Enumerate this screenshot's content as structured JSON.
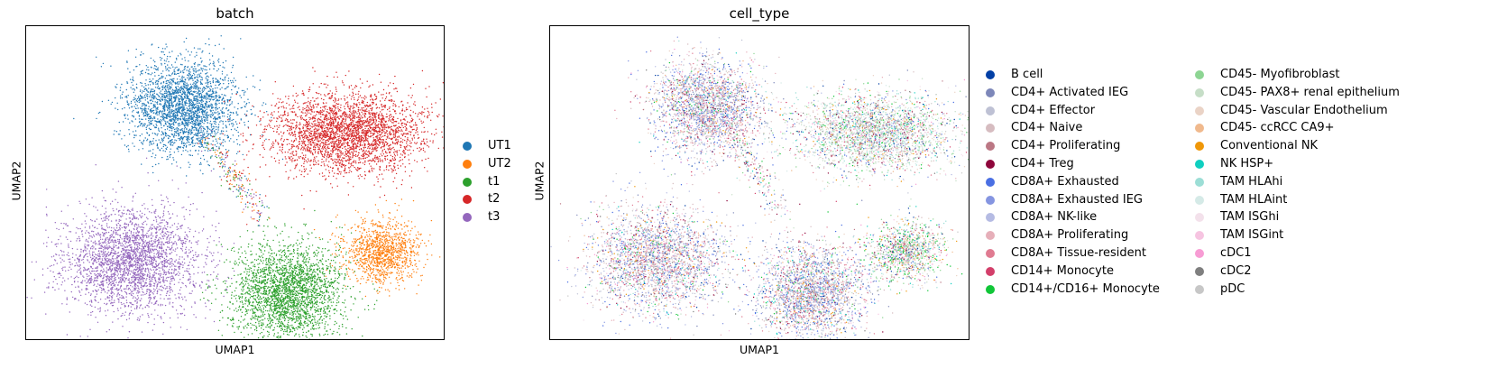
{
  "chart_data": [
    {
      "type": "scatter",
      "title": "batch",
      "xlabel": "UMAP1",
      "ylabel": "UMAP2",
      "grid": false,
      "ticks": "none",
      "legend": "right",
      "series": [
        {
          "name": "UT1",
          "color": "#1f77b4"
        },
        {
          "name": "UT2",
          "color": "#ff7f0e"
        },
        {
          "name": "t1",
          "color": "#2ca02c"
        },
        {
          "name": "t2",
          "color": "#d62728"
        },
        {
          "name": "t3",
          "color": "#9467bd"
        }
      ]
    },
    {
      "type": "scatter",
      "title": "cell_type",
      "xlabel": "UMAP1",
      "ylabel": "UMAP2",
      "grid": false,
      "ticks": "none",
      "legend": "right, two columns",
      "series": [
        {
          "name": "B cell",
          "color": "#023fa5"
        },
        {
          "name": "CD4+ Activated IEG",
          "color": "#7d87b9"
        },
        {
          "name": "CD4+ Effector",
          "color": "#bec1d4"
        },
        {
          "name": "CD4+ Naive",
          "color": "#d6bcc0"
        },
        {
          "name": "CD4+ Proliferating",
          "color": "#bb7784"
        },
        {
          "name": "CD4+ Treg",
          "color": "#8e063b"
        },
        {
          "name": "CD8A+ Exhausted",
          "color": "#4a6fe3"
        },
        {
          "name": "CD8A+ Exhausted IEG",
          "color": "#8595e1"
        },
        {
          "name": "CD8A+ NK-like",
          "color": "#b5bbe3"
        },
        {
          "name": "CD8A+ Proliferating",
          "color": "#e6afb9"
        },
        {
          "name": "CD8A+ Tissue-resident",
          "color": "#e07b91"
        },
        {
          "name": "CD14+ Monocyte",
          "color": "#d33f6a"
        },
        {
          "name": "CD14+/CD16+ Monocyte",
          "color": "#11c638"
        },
        {
          "name": "CD45- Myofibroblast",
          "color": "#8dd593"
        },
        {
          "name": "CD45- PAX8+ renal epithelium",
          "color": "#c6dec7"
        },
        {
          "name": "CD45- Vascular Endothelium",
          "color": "#ead3c6"
        },
        {
          "name": "CD45- ccRCC CA9+",
          "color": "#f0b98d"
        },
        {
          "name": "Conventional NK",
          "color": "#ef9708"
        },
        {
          "name": "NK HSP+",
          "color": "#0fcfc0"
        },
        {
          "name": "TAM HLAhi",
          "color": "#9cded6"
        },
        {
          "name": "TAM HLAint",
          "color": "#d5eae7"
        },
        {
          "name": "TAM ISGhi",
          "color": "#f3e1eb"
        },
        {
          "name": "TAM ISGint",
          "color": "#f6c4e1"
        },
        {
          "name": "cDC1",
          "color": "#f79cd4"
        },
        {
          "name": "cDC2",
          "color": "#7f7f7f"
        },
        {
          "name": "pDC",
          "color": "#c7c7c7"
        }
      ]
    }
  ]
}
